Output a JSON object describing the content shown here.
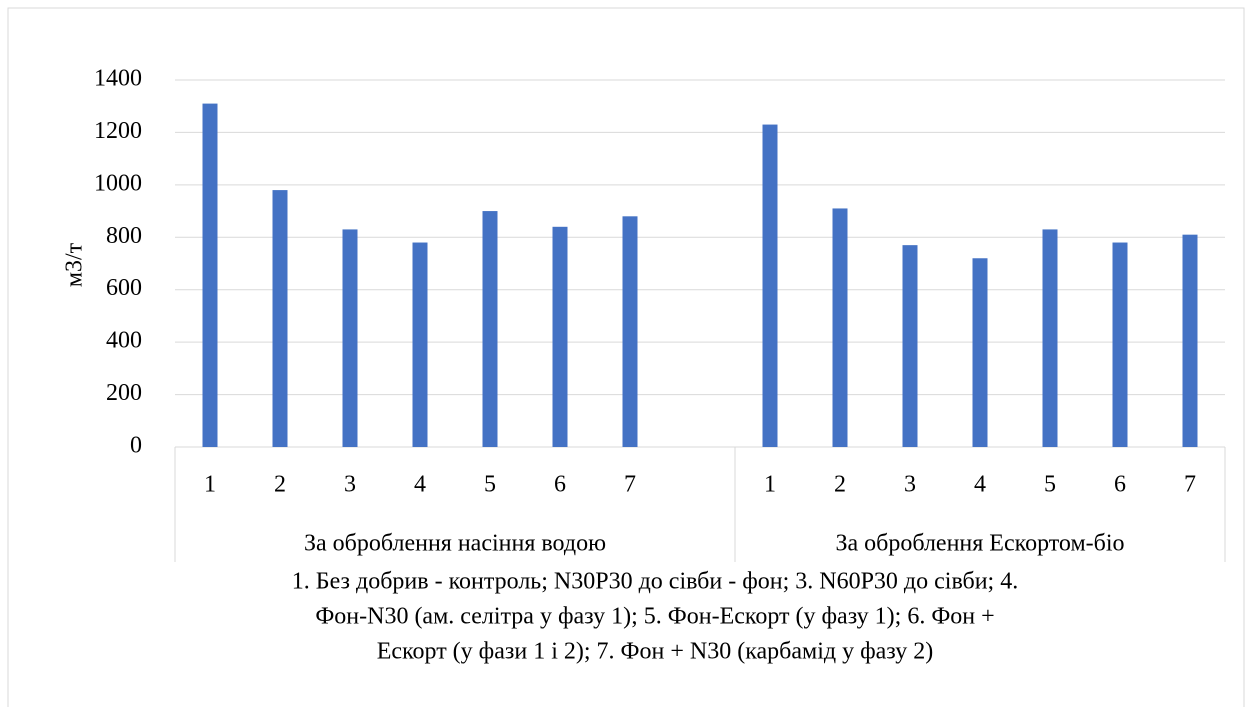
{
  "chart_data": {
    "type": "bar",
    "ylabel": "м3/т",
    "groups": [
      {
        "name": "За оброблення насіння водою",
        "categories": [
          "1",
          "2",
          "3",
          "4",
          "5",
          "6",
          "7",
          null
        ],
        "values": [
          1310,
          980,
          830,
          780,
          900,
          840,
          880,
          null
        ]
      },
      {
        "name": "За оброблення Ескортом-біо",
        "categories": [
          "1",
          "2",
          "3",
          "4",
          "5",
          "6",
          "7"
        ],
        "values": [
          1230,
          910,
          770,
          720,
          830,
          780,
          810
        ]
      }
    ],
    "color": "#4472c4",
    "ylim": [
      0,
      1400
    ],
    "yticks": [
      0,
      200,
      400,
      600,
      800,
      1000,
      1200,
      1400
    ],
    "grid": true,
    "note": [
      "1. Без добрив - контроль; N30P30 до сівби - фон; 3. N60P30 до сівби; 4.",
      "Фон-N30 (ам. селітра у фазу 1); 5. Фон-Ескорт (у фазу 1); 6. Фон +",
      "Ескорт (у фази 1 і 2);  7. Фон + N30 (карбамід у фазу 2)"
    ]
  }
}
